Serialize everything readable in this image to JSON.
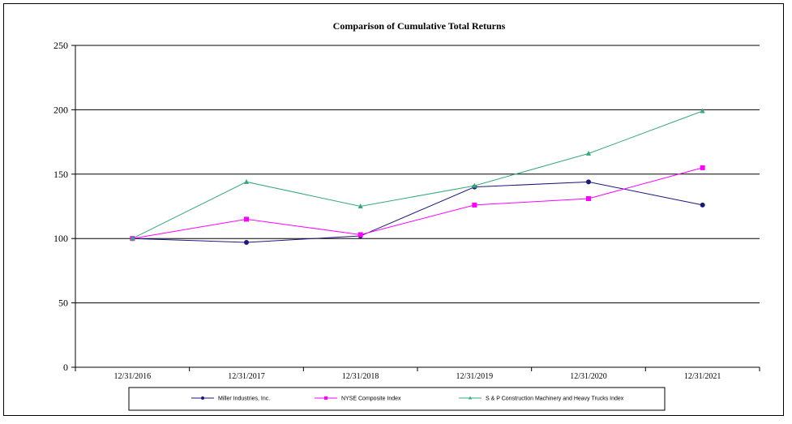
{
  "chart_data": {
    "type": "line",
    "title": "Comparison of Cumulative Total Returns",
    "xlabel": "",
    "ylabel": "",
    "categories": [
      "12/31/2016",
      "12/31/2017",
      "12/31/2018",
      "12/31/2019",
      "12/31/2020",
      "12/31/2021"
    ],
    "ylim": [
      0,
      250
    ],
    "yticks": [
      0,
      50,
      100,
      150,
      200,
      250
    ],
    "grid": "horizontal",
    "legend_position": "bottom",
    "series": [
      {
        "name": "Miller Industries, Inc.",
        "color": "#1a1a7a",
        "marker": "circle",
        "values": [
          100,
          97,
          102,
          140,
          144,
          126
        ]
      },
      {
        "name": "NYSE Composite Index",
        "color": "#ff00ff",
        "marker": "square",
        "values": [
          100,
          115,
          103,
          126,
          131,
          155
        ]
      },
      {
        "name": "S & P Construction Machinery and Heavy Trucks Index",
        "color": "#33aa77",
        "marker": "triangle",
        "values": [
          100,
          144,
          125,
          141,
          166,
          199
        ]
      }
    ]
  }
}
